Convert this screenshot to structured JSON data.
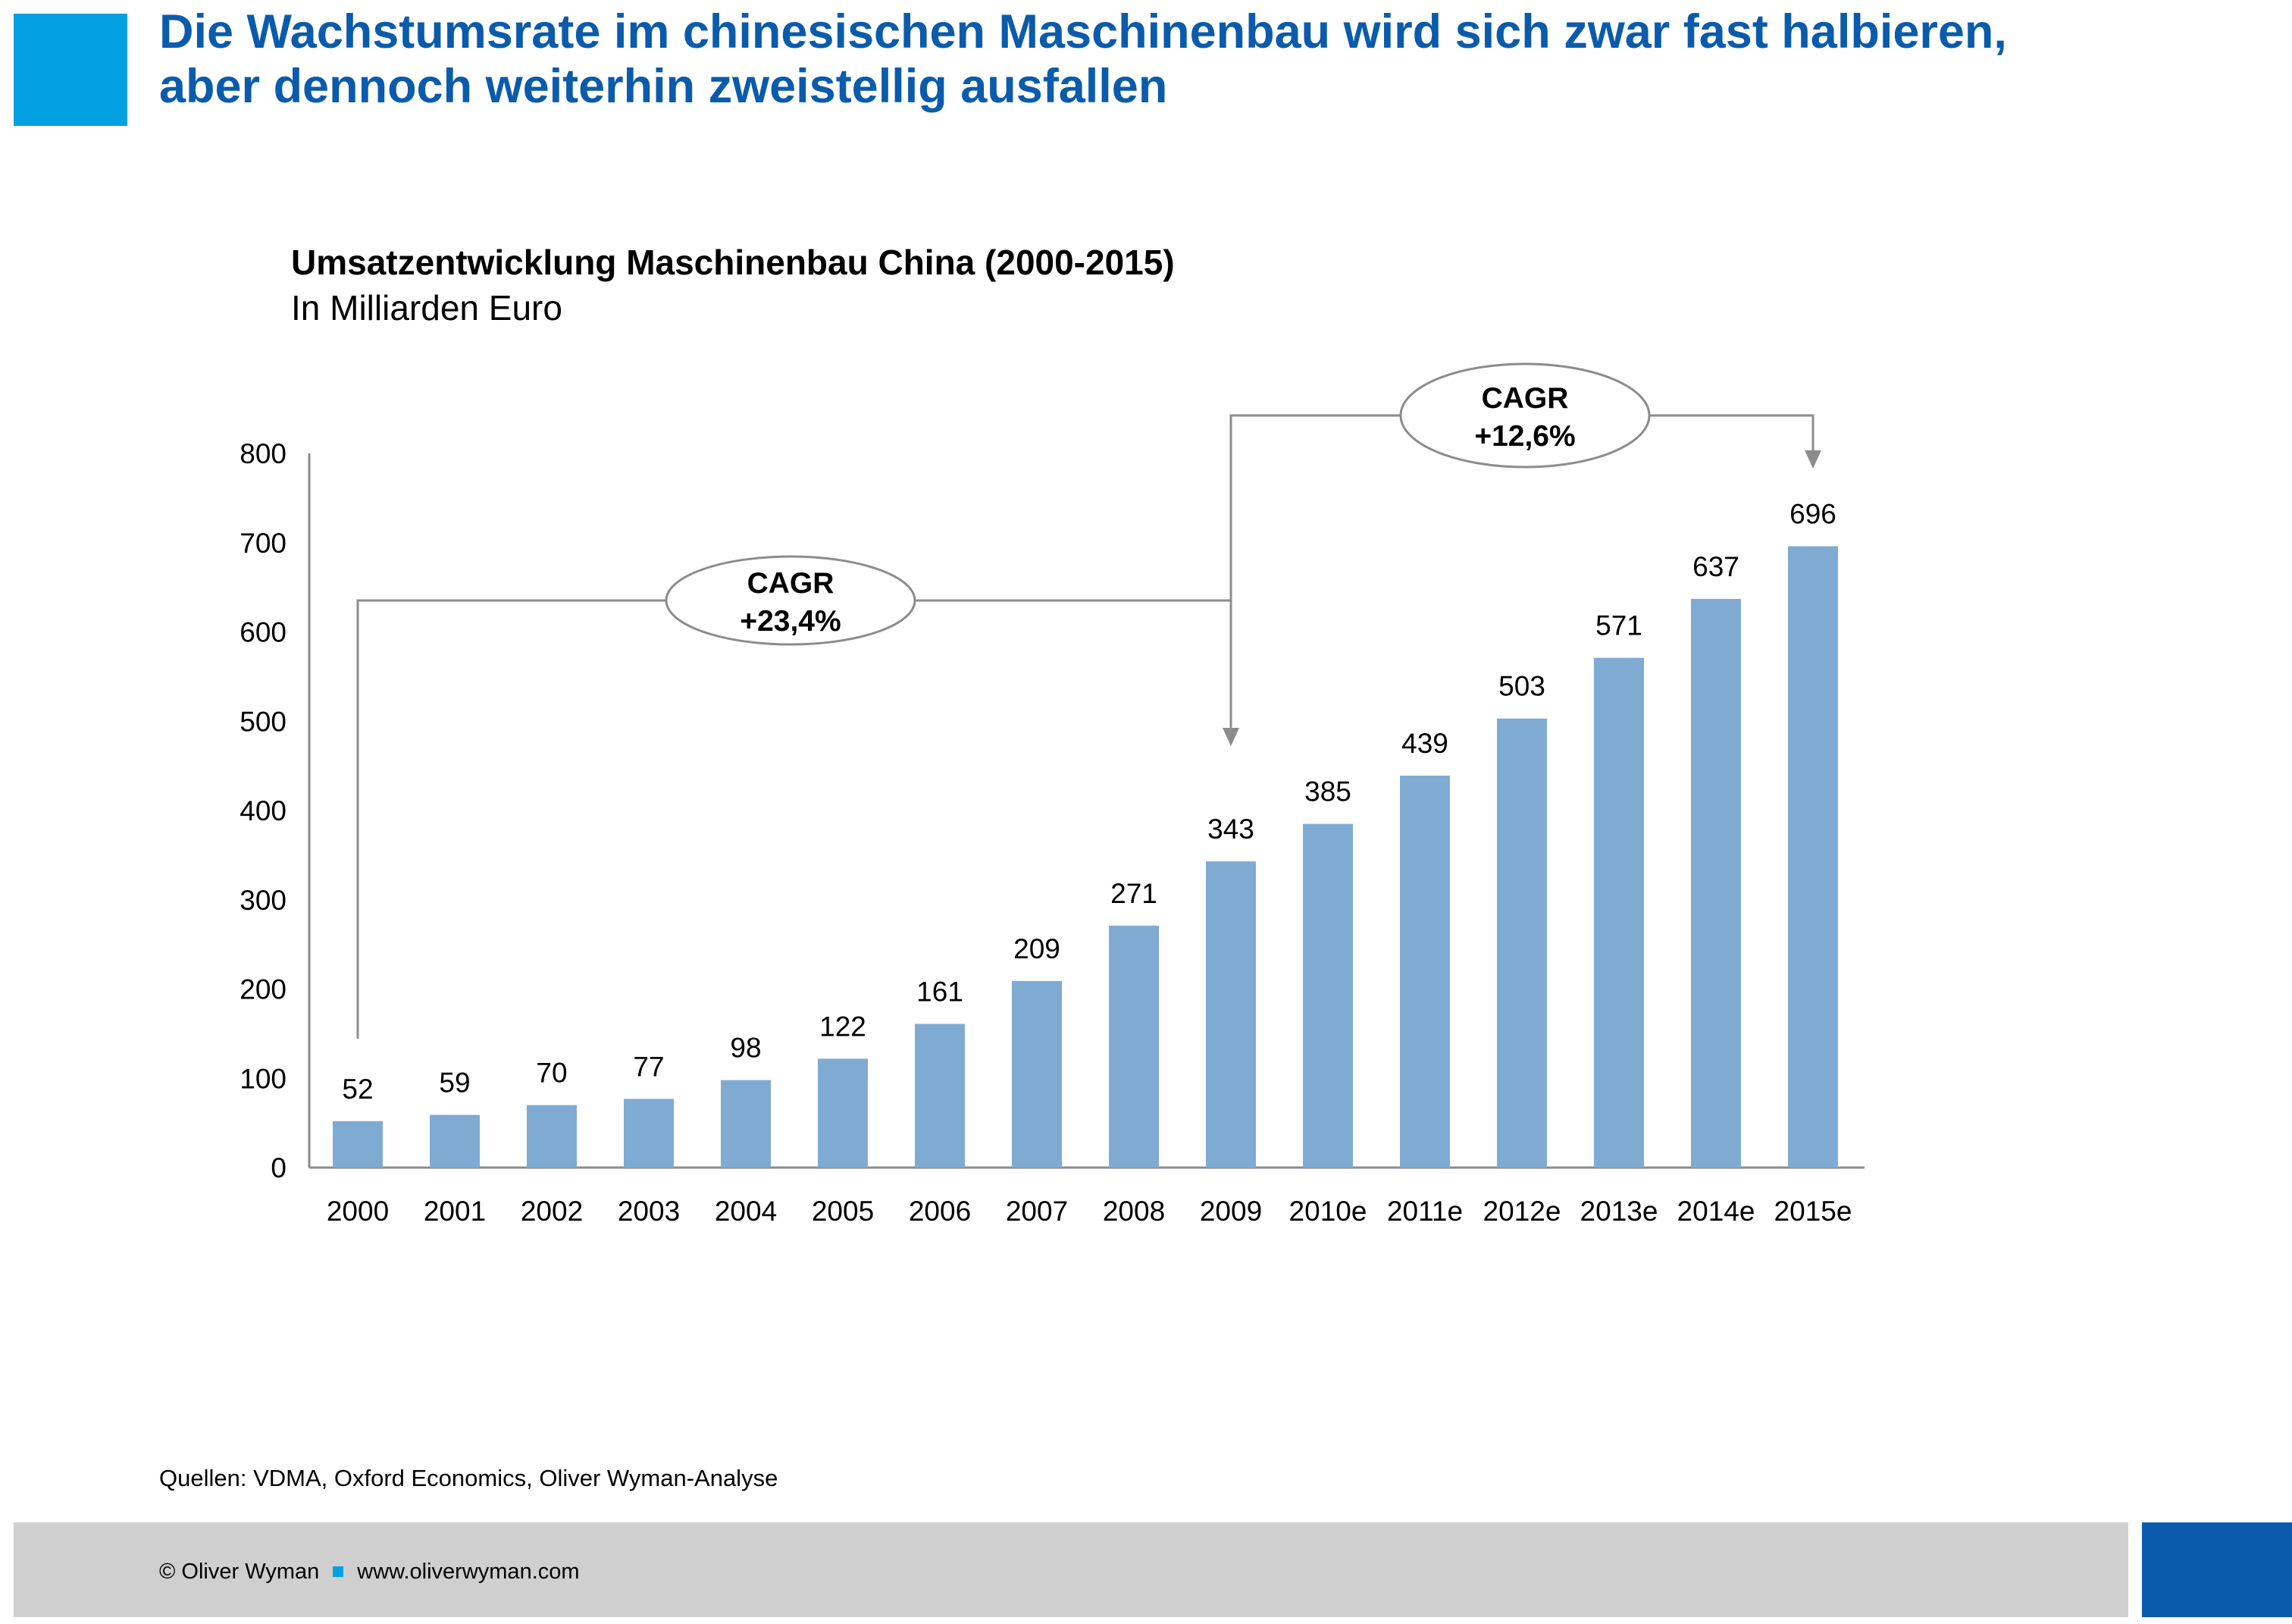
{
  "header": {
    "title_line1": "Die Wachstumsrate im chinesischen Maschinenbau wird sich zwar fast halbieren,",
    "title_line2": "aber dennoch weiterhin zweistellig ausfallen"
  },
  "chart_data": {
    "type": "bar",
    "title": "Umsatzentwicklung Maschinenbau China (2000-2015)",
    "subtitle": "In Milliarden Euro",
    "categories": [
      "2000",
      "2001",
      "2002",
      "2003",
      "2004",
      "2005",
      "2006",
      "2007",
      "2008",
      "2009",
      "2010e",
      "2011e",
      "2012e",
      "2013e",
      "2014e",
      "2015e"
    ],
    "values": [
      52,
      59,
      70,
      77,
      98,
      122,
      161,
      209,
      271,
      343,
      385,
      439,
      503,
      571,
      637,
      696
    ],
    "ylim": [
      0,
      800
    ],
    "yticks": [
      0,
      100,
      200,
      300,
      400,
      500,
      600,
      700,
      800
    ],
    "grid": false,
    "bar_color": "#7fabd3",
    "annotations": [
      {
        "label_line1": "CAGR",
        "label_line2": "+23,4%",
        "from": "2000",
        "to": "2009"
      },
      {
        "label_line1": "CAGR",
        "label_line2": "+12,6%",
        "from": "2009",
        "to": "2015e"
      }
    ]
  },
  "source": "Quellen: VDMA, Oxford Economics, Oliver Wyman-Analyse",
  "footer": {
    "copyright": "© Oliver Wyman",
    "website": "www.oliverwyman.com"
  },
  "colors": {
    "title_blue": "#0a5bab",
    "accent_cyan": "#00a0e2",
    "footer_gray": "#cfcfcf",
    "bar_blue": "#7fabd3",
    "annotation_line": "#8c8c8c"
  }
}
